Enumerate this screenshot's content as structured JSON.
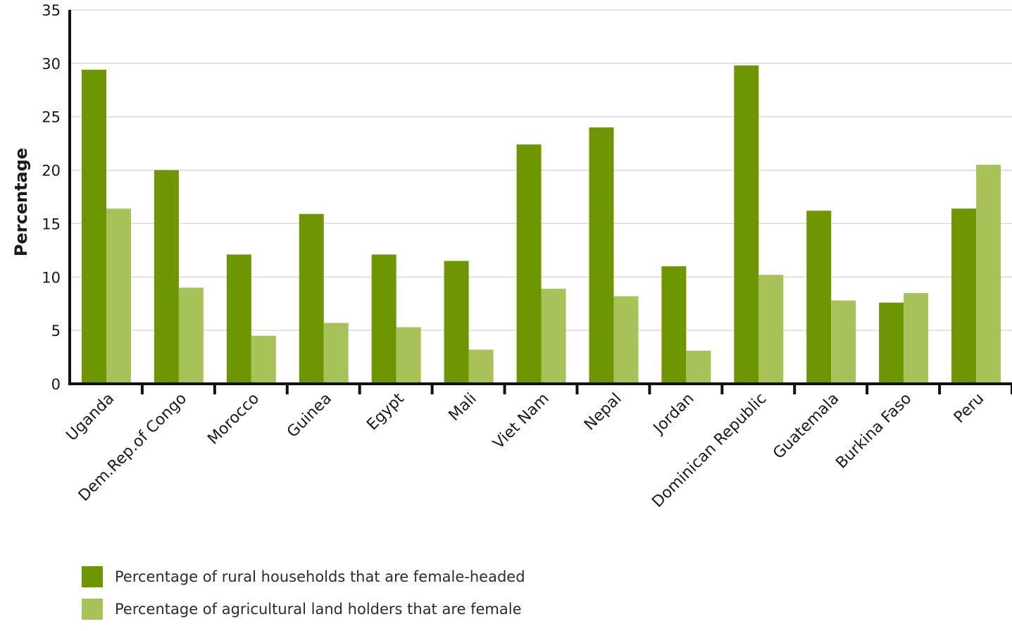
{
  "chart_data": {
    "type": "bar",
    "ylabel": "Percentage",
    "xlabel": "",
    "ylim": [
      0,
      35
    ],
    "yticks": [
      "0",
      "5",
      "10",
      "15",
      "20",
      "25",
      "30",
      "35"
    ],
    "grid": true,
    "legend_position": "bottom-left",
    "categories": [
      "Uganda",
      "Dem.Rep.of Congo",
      "Morocco",
      "Guinea",
      "Egypt",
      "Mali",
      "Viet Nam",
      "Nepal",
      "Jordan",
      "Dominican Republic",
      "Guatemala",
      "Burkina Faso",
      "Peru"
    ],
    "series": [
      {
        "name": "Percentage of rural households that are female-headed",
        "color": "#6e9600",
        "values": [
          29.4,
          20.0,
          12.1,
          15.9,
          12.1,
          11.5,
          22.4,
          24.0,
          11.0,
          29.8,
          16.2,
          7.6,
          16.4
        ]
      },
      {
        "name": "Percentage of agricultural land holders that are female",
        "color": "#a8c25a",
        "values": [
          16.4,
          9.0,
          4.5,
          5.7,
          5.3,
          3.2,
          8.9,
          8.2,
          3.1,
          10.2,
          7.8,
          8.5,
          20.5
        ]
      }
    ]
  }
}
